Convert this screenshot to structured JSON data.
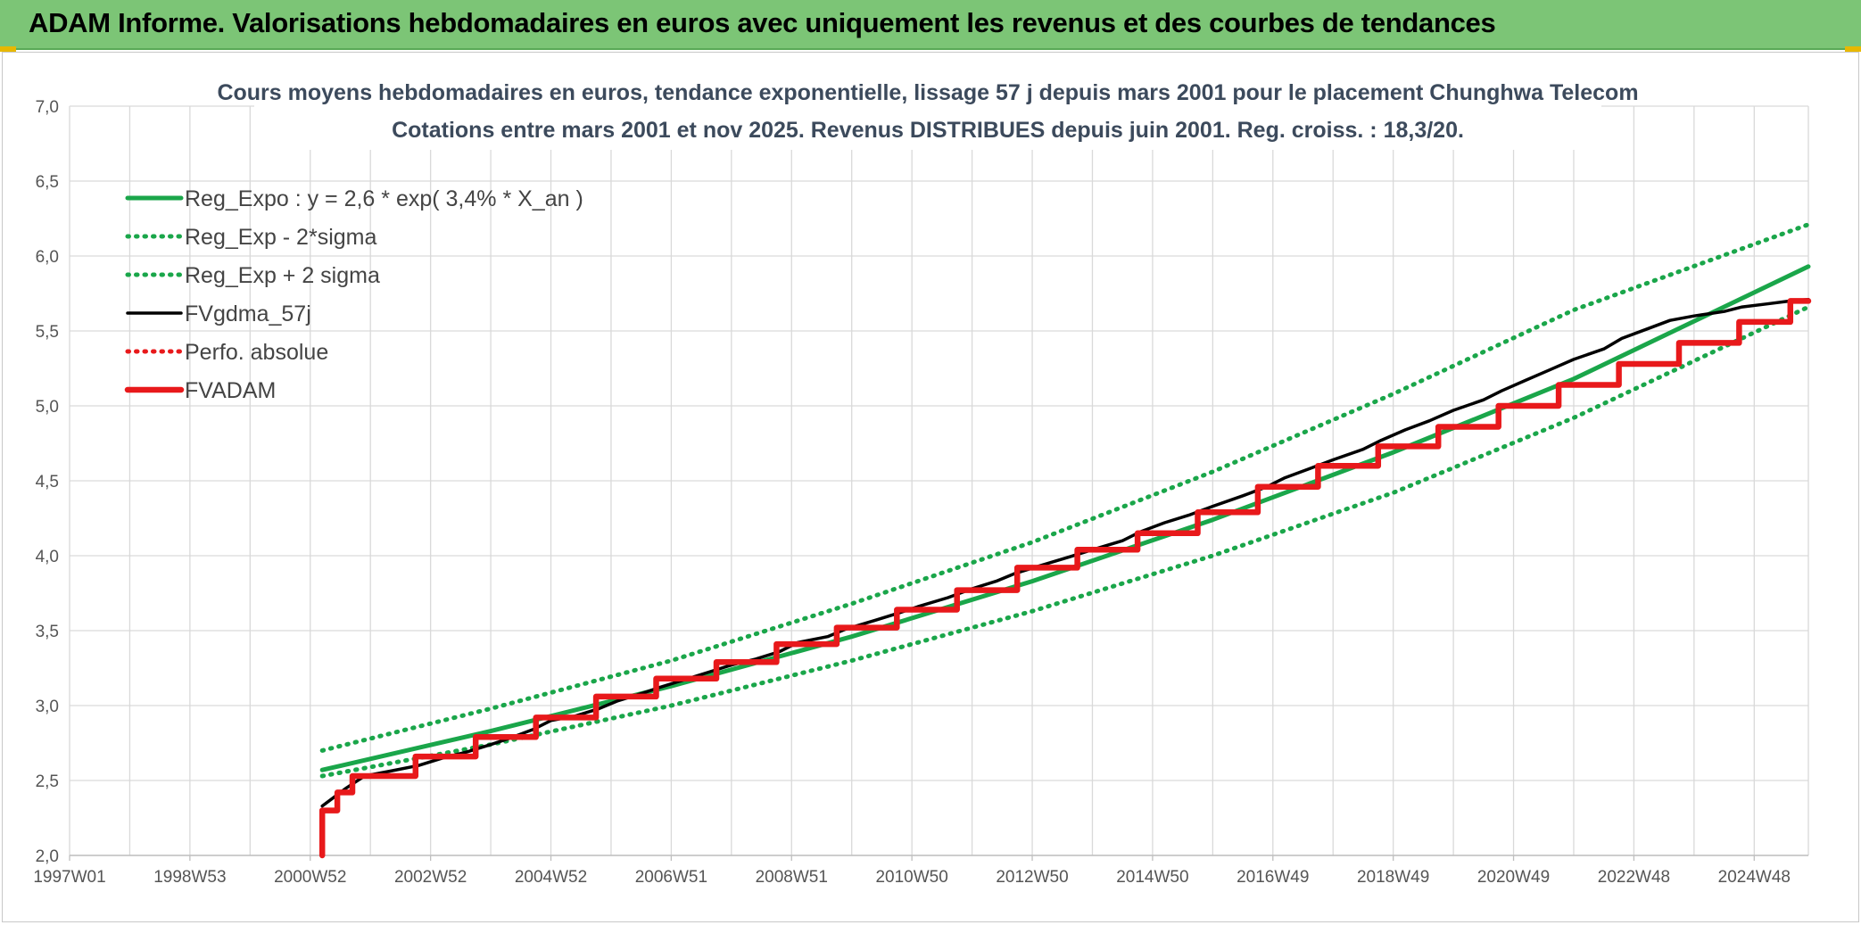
{
  "header": {
    "title": "ADAM Informe. Valorisations hebdomadaires en euros avec uniquement les revenus et des courbes de tendances"
  },
  "colors": {
    "banner": "#7cc576",
    "green": "#1aa64a",
    "black": "#000000",
    "red": "#e8191b",
    "grid": "#d9d9d9"
  },
  "chart_data": {
    "type": "line",
    "title": "Cours moyens hebdomadaires en euros, tendance exponentielle, lissage 57 j depuis mars 2001 pour le placement Chunghwa Telecom",
    "subtitle": "Cotations entre mars 2001 et nov 2025. Revenus DISTRIBUES depuis juin 2001. Reg. croiss. : 18,3/20.",
    "xlabel": "",
    "ylabel": "",
    "x_range": [
      1997.0,
      2025.9
    ],
    "ylim": [
      2.0,
      7.0
    ],
    "y_ticks": [
      "2,0",
      "2,5",
      "3,0",
      "3,5",
      "4,0",
      "4,5",
      "5,0",
      "5,5",
      "6,0",
      "6,5",
      "7,0"
    ],
    "x_ticks": [
      {
        "label": "1997W01",
        "x": 1997.0
      },
      {
        "label": "1998W53",
        "x": 1999.0
      },
      {
        "label": "2000W52",
        "x": 2001.0
      },
      {
        "label": "2002W52",
        "x": 2003.0
      },
      {
        "label": "2004W52",
        "x": 2005.0
      },
      {
        "label": "2006W51",
        "x": 2007.0
      },
      {
        "label": "2008W51",
        "x": 2009.0
      },
      {
        "label": "2010W50",
        "x": 2011.0
      },
      {
        "label": "2012W50",
        "x": 2013.0
      },
      {
        "label": "2014W50",
        "x": 2015.0
      },
      {
        "label": "2016W49",
        "x": 2017.0
      },
      {
        "label": "2018W49",
        "x": 2019.0
      },
      {
        "label": "2020W49",
        "x": 2021.0
      },
      {
        "label": "2022W48",
        "x": 2023.0
      },
      {
        "label": "2024W48",
        "x": 2025.0
      }
    ],
    "grid": true,
    "legend_position": "top-left",
    "series": [
      {
        "name": "Reg_Expo : y = 2,6 * exp( 3,4% *  X_an )",
        "style": "solid-thick",
        "color": "#1aa64a",
        "x": [
          2001.2,
          2004.0,
          2007.0,
          2010.0,
          2013.0,
          2016.0,
          2019.0,
          2022.0,
          2025.9
        ],
        "values": [
          2.57,
          2.83,
          3.13,
          3.46,
          3.83,
          4.24,
          4.69,
          5.18,
          5.93
        ]
      },
      {
        "name": "Reg_Exp - 2*sigma",
        "style": "dotted",
        "color": "#1aa64a",
        "x": [
          2001.2,
          2004.0,
          2007.0,
          2010.0,
          2013.0,
          2016.0,
          2019.0,
          2022.0,
          2025.9
        ],
        "values": [
          2.53,
          2.74,
          3.0,
          3.3,
          3.63,
          4.0,
          4.42,
          4.92,
          5.66
        ]
      },
      {
        "name": "Reg_Exp + 2 sigma",
        "style": "dotted",
        "color": "#1aa64a",
        "x": [
          2001.2,
          2004.0,
          2007.0,
          2010.0,
          2013.0,
          2016.0,
          2019.0,
          2022.0,
          2025.9
        ],
        "values": [
          2.7,
          2.98,
          3.3,
          3.68,
          4.09,
          4.56,
          5.08,
          5.64,
          6.21
        ]
      },
      {
        "name": "FVgdma_57j",
        "style": "solid",
        "color": "#000000",
        "x": [
          2001.2,
          2001.6,
          2001.9,
          2002.3,
          2002.8,
          2003.2,
          2003.6,
          2004.0,
          2004.3,
          2004.7,
          2005.0,
          2005.4,
          2005.8,
          2006.1,
          2006.5,
          2006.8,
          2007.2,
          2007.6,
          2008.0,
          2008.4,
          2008.8,
          2009.1,
          2009.6,
          2009.9,
          2010.4,
          2010.8,
          2011.1,
          2011.6,
          2012.0,
          2012.4,
          2012.7,
          2013.1,
          2013.6,
          2014.0,
          2014.5,
          2014.8,
          2015.2,
          2015.6,
          2016.0,
          2016.5,
          2016.9,
          2017.2,
          2017.6,
          2018.0,
          2018.5,
          2018.8,
          2019.2,
          2019.6,
          2020.0,
          2020.5,
          2020.8,
          2021.2,
          2021.6,
          2022.0,
          2022.5,
          2022.8,
          2023.2,
          2023.6,
          2024.0,
          2024.5,
          2024.8,
          2025.2,
          2025.6,
          2025.9
        ],
        "values": [
          2.33,
          2.45,
          2.53,
          2.56,
          2.6,
          2.65,
          2.69,
          2.74,
          2.78,
          2.84,
          2.9,
          2.93,
          2.98,
          3.03,
          3.08,
          3.12,
          3.17,
          3.22,
          3.27,
          3.31,
          3.36,
          3.42,
          3.46,
          3.51,
          3.57,
          3.62,
          3.66,
          3.72,
          3.78,
          3.83,
          3.88,
          3.93,
          3.99,
          4.04,
          4.1,
          4.16,
          4.22,
          4.27,
          4.33,
          4.4,
          4.46,
          4.52,
          4.58,
          4.64,
          4.71,
          4.77,
          4.84,
          4.9,
          4.97,
          5.04,
          5.1,
          5.17,
          5.24,
          5.31,
          5.38,
          5.45,
          5.51,
          5.57,
          5.6,
          5.63,
          5.66,
          5.68,
          5.7,
          5.71
        ]
      },
      {
        "name": "Perfo. absolue",
        "style": "dotted",
        "color": "#e8191b",
        "x": [],
        "values": []
      },
      {
        "name": "FVADAM",
        "style": "solid-thick",
        "color": "#e8191b",
        "x": [
          2001.2,
          2001.2,
          2001.45,
          2001.45,
          2001.7,
          2001.7,
          2002.75,
          2002.75,
          2003.75,
          2003.75,
          2004.75,
          2004.75,
          2005.75,
          2005.75,
          2006.75,
          2006.75,
          2007.75,
          2007.75,
          2008.75,
          2008.75,
          2009.75,
          2009.75,
          2010.75,
          2010.75,
          2011.75,
          2011.75,
          2012.75,
          2012.75,
          2013.75,
          2013.75,
          2014.75,
          2014.75,
          2015.75,
          2015.75,
          2016.75,
          2016.75,
          2017.75,
          2017.75,
          2018.75,
          2018.75,
          2019.75,
          2019.75,
          2020.75,
          2020.75,
          2021.75,
          2021.75,
          2022.75,
          2022.75,
          2023.75,
          2023.75,
          2024.75,
          2024.75,
          2025.6,
          2025.6,
          2025.9
        ],
        "values": [
          2.0,
          2.3,
          2.3,
          2.42,
          2.42,
          2.53,
          2.53,
          2.66,
          2.66,
          2.79,
          2.79,
          2.92,
          2.92,
          3.06,
          3.06,
          3.18,
          3.18,
          3.29,
          3.29,
          3.41,
          3.41,
          3.52,
          3.52,
          3.64,
          3.64,
          3.77,
          3.77,
          3.92,
          3.92,
          4.04,
          4.04,
          4.15,
          4.15,
          4.29,
          4.29,
          4.46,
          4.46,
          4.6,
          4.6,
          4.73,
          4.73,
          4.86,
          4.86,
          5.0,
          5.0,
          5.14,
          5.14,
          5.28,
          5.28,
          5.42,
          5.42,
          5.56,
          5.56,
          5.7,
          5.7
        ]
      }
    ]
  }
}
